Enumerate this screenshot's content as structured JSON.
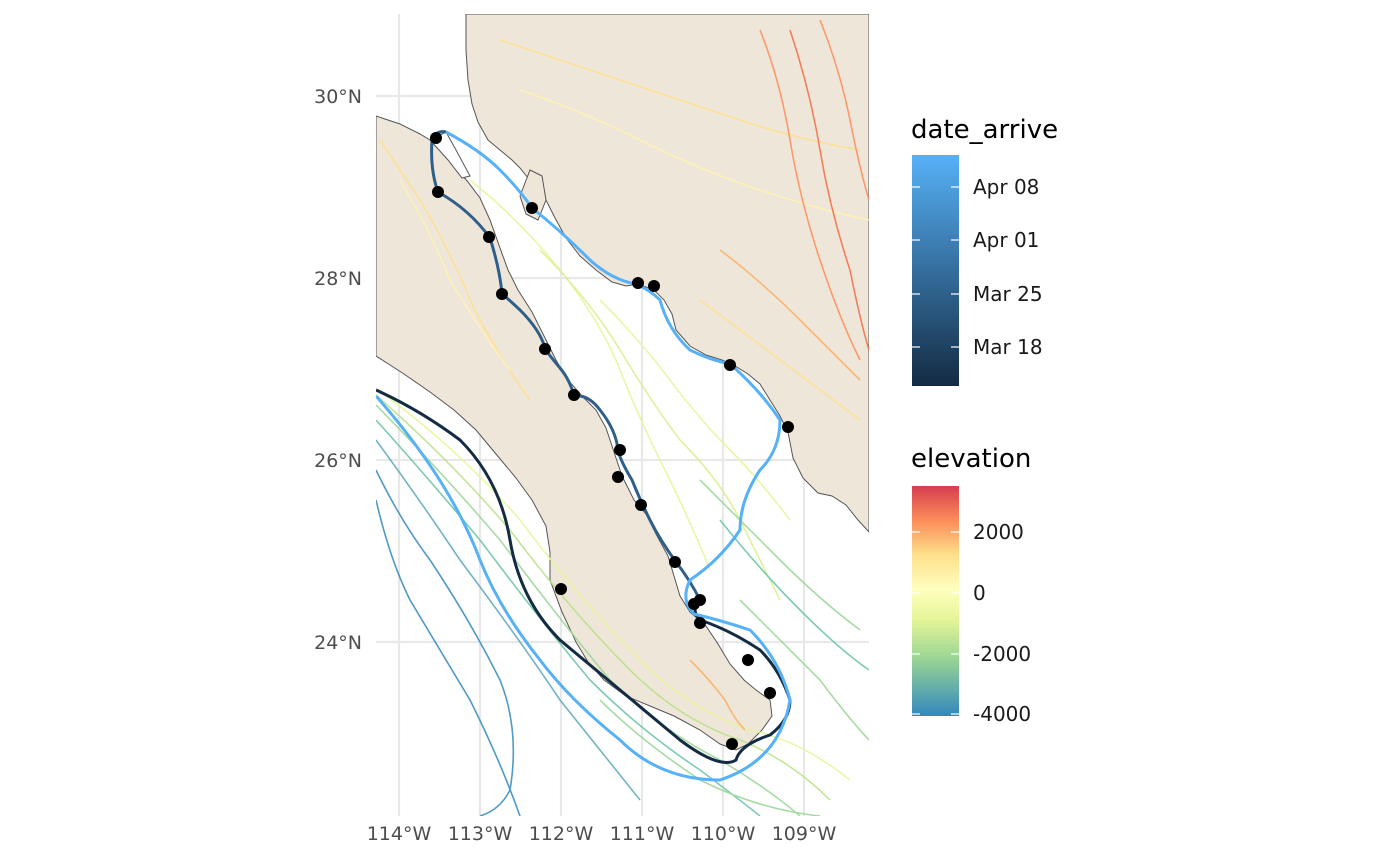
{
  "map": {
    "y_ticks": [
      "30°N",
      "28°N",
      "26°N",
      "24°N"
    ],
    "x_ticks": [
      "114°W",
      "113°W",
      "112°W",
      "111°W",
      "110°W",
      "109°W"
    ]
  },
  "legend_date": {
    "title": "date_arrive",
    "labels": [
      "Apr 08",
      "Apr 01",
      "Mar 25",
      "Mar 18"
    ],
    "colors": [
      "#132B43",
      "#56B1F7"
    ]
  },
  "legend_elevation": {
    "title": "elevation",
    "labels": [
      "2000",
      "0",
      "-2000",
      "-4000"
    ],
    "colors": [
      "#3288BD",
      "#99D594",
      "#E6F598",
      "#FFFFBF",
      "#FEE08B",
      "#FC8D59",
      "#D53E4F"
    ]
  },
  "colors": {
    "land": "#EFE6DA",
    "grid": "#E8E8E8",
    "coast": "#555555",
    "point": "#000000"
  }
}
